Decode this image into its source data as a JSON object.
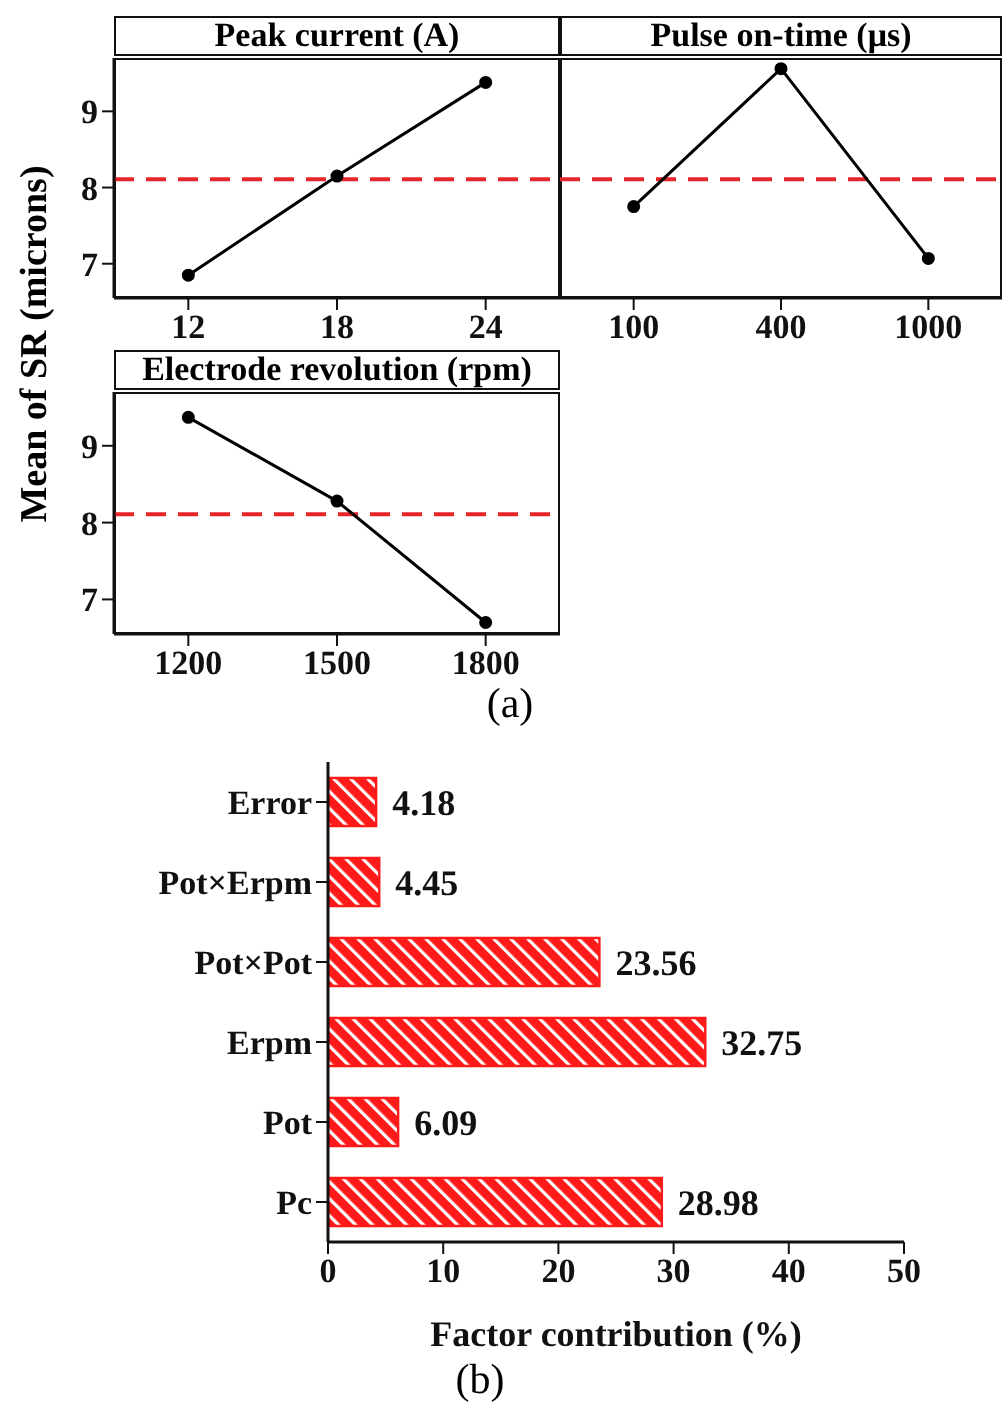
{
  "chart_data": [
    {
      "type": "line",
      "title": "Peak current (A)",
      "ylabel": "Mean of SR (microns)",
      "categories": [
        "12",
        "18",
        "24"
      ],
      "values": [
        6.85,
        8.15,
        9.38
      ],
      "color": "#000000",
      "marker": "circle",
      "line_style": "solid",
      "ylim": [
        6.55,
        9.7
      ],
      "yticks": [
        7,
        8,
        9
      ],
      "grid": false,
      "legend": false,
      "ref_lines": [
        {
          "axis": "y",
          "value": 8.11,
          "color": "#e8242b",
          "line_style": "dashed"
        }
      ]
    },
    {
      "type": "line",
      "title": "Pulse on-time (μs)",
      "categories": [
        "100",
        "400",
        "1000"
      ],
      "values": [
        7.75,
        9.56,
        7.07
      ],
      "color": "#000000",
      "marker": "circle",
      "line_style": "solid",
      "ylim": [
        6.55,
        9.7
      ],
      "yticks": [
        7,
        8,
        9
      ],
      "tick_labels": "x",
      "grid": false,
      "legend": false,
      "ref_lines": [
        {
          "axis": "y",
          "value": 8.11,
          "color": "#e8242b",
          "line_style": "dashed"
        }
      ]
    },
    {
      "type": "line",
      "title": "Electrode revolution (rpm)",
      "categories": [
        "1200",
        "1500",
        "1800"
      ],
      "values": [
        9.37,
        8.28,
        6.7
      ],
      "color": "#000000",
      "marker": "circle",
      "line_style": "solid",
      "ylim": [
        6.55,
        9.7
      ],
      "yticks": [
        7,
        8,
        9
      ],
      "grid": false,
      "legend": false,
      "annotations": [
        "(a)"
      ],
      "ref_lines": [
        {
          "axis": "y",
          "value": 8.11,
          "color": "#e8242b",
          "line_style": "dashed"
        }
      ]
    },
    {
      "type": "bar",
      "orientation": "horizontal",
      "xlabel": "Factor contribution (%)",
      "categories": [
        "Error",
        "Pot×Erpm",
        "Pot×Pot",
        "Erpm",
        "Pot",
        "Pc"
      ],
      "values": [
        4.18,
        4.45,
        23.56,
        32.75,
        6.09,
        28.98
      ],
      "color": "#ff1a1a",
      "data_labels": true,
      "xlim": [
        0,
        50
      ],
      "xticks": [
        0,
        10,
        20,
        30,
        40,
        50
      ],
      "grid": false,
      "legend": false,
      "annotations": [
        "(b)"
      ]
    }
  ]
}
